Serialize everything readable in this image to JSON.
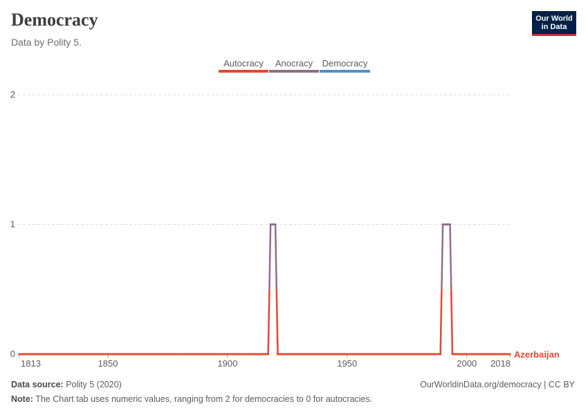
{
  "header": {
    "title": "Democracy",
    "subtitle": "Data by Polity 5."
  },
  "logo": {
    "line1": "Our World",
    "line2": "in Data"
  },
  "footer": {
    "source_label": "Data source:",
    "source_value": "Polity 5 (2020)",
    "note_label": "Note:",
    "note_value": "The Chart tab uses numeric values, ranging from 2 for democracies to 0 for autocracies.",
    "link": "OurWorldinData.org/democracy | CC BY"
  },
  "colors": {
    "autocracy": "#e4472f",
    "anocracy": "#8e6e8c",
    "democracy": "#4c93c3",
    "grid": "#dddddd",
    "axis": "#999999"
  },
  "chart_data": {
    "type": "line",
    "series": [
      {
        "name": "Azerbaijan",
        "segments": [
          {
            "x0": 1813,
            "x1": 1917,
            "value": 0
          },
          {
            "x0": 1918,
            "x1": 1920,
            "value": 1
          },
          {
            "x0": 1921,
            "x1": 1989,
            "value": 0
          },
          {
            "x0": 1990,
            "x1": 1993,
            "value": 1
          },
          {
            "x0": 1994,
            "x1": 2018,
            "value": 0
          }
        ]
      }
    ],
    "legend": [
      "Autocracy",
      "Anocracy",
      "Democracy"
    ],
    "x_ticks": [
      1813,
      1850,
      1900,
      1950,
      2000,
      2018
    ],
    "y_ticks": [
      0,
      1,
      2
    ],
    "xlim": [
      1813,
      2018
    ],
    "ylim": [
      0,
      2
    ],
    "grid": true,
    "legend_position": "top"
  }
}
